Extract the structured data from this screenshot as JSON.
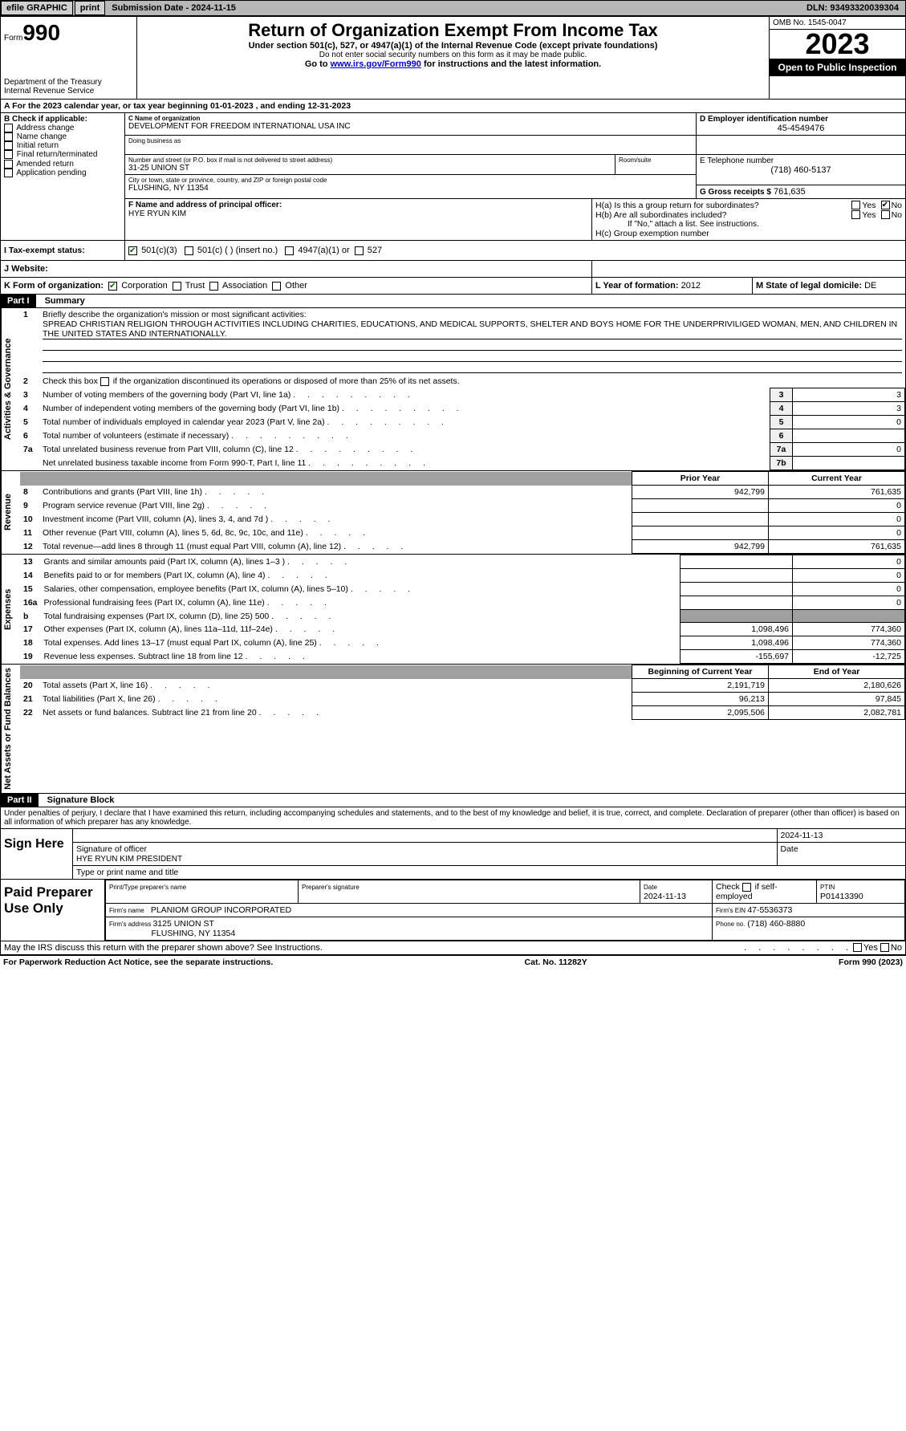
{
  "colors": {
    "accent_green": "#006600",
    "link_blue": "#0000cc",
    "gray_bg": "#b8b8b8",
    "gray_btn": "#d0d0d0",
    "gray_fill": "#a0a0a0",
    "num_bg": "#f0f0f0"
  },
  "topbar": {
    "efile": "efile GRAPHIC",
    "print": "print",
    "sub_label": "Submission Date - 2024-11-15",
    "dln": "DLN: 93493320039304"
  },
  "header": {
    "form_word": "Form",
    "form_num": "990",
    "dept": "Department of the Treasury",
    "irs": "Internal Revenue Service",
    "title": "Return of Organization Exempt From Income Tax",
    "sub1": "Under section 501(c), 527, or 4947(a)(1) of the Internal Revenue Code (except private foundations)",
    "sub2": "Do not enter social security numbers on this form as it may be made public.",
    "sub3_pre": "Go to ",
    "sub3_link": "www.irs.gov/Form990",
    "sub3_post": " for instructions and the latest information.",
    "omb": "OMB No. 1545-0047",
    "year": "2023",
    "inspect": "Open to Public Inspection"
  },
  "periodA": "A For the 2023 calendar year, or tax year beginning 01-01-2023   , and ending 12-31-2023",
  "boxB": {
    "label": "B Check if applicable:",
    "items": [
      "Address change",
      "Name change",
      "Initial return",
      "Final return/terminated",
      "Amended return",
      "Application pending"
    ]
  },
  "boxC": {
    "name_lbl": "C Name of organization",
    "name": "DEVELOPMENT FOR FREEDOM INTERNATIONAL USA INC",
    "dba_lbl": "Doing business as",
    "street_lbl": "Number and street (or P.O. box if mail is not delivered to street address)",
    "room_lbl": "Room/suite",
    "street": "31-25 UNION ST",
    "city_lbl": "City or town, state or province, country, and ZIP or foreign postal code",
    "city": "FLUSHING, NY  11354"
  },
  "boxD": {
    "lbl": "D Employer identification number",
    "val": "45-4549476"
  },
  "boxE": {
    "lbl": "E Telephone number",
    "val": "(718) 460-5137"
  },
  "boxG": {
    "lbl": "G Gross receipts $",
    "val": "761,635"
  },
  "boxF": {
    "lbl": "F  Name and address of principal officer:",
    "val": "HYE RYUN KIM"
  },
  "boxH": {
    "ha": "H(a)  Is this a group return for subordinates?",
    "hb": "H(b)  Are all subordinates included?",
    "hb_note": "If \"No,\" attach a list. See instructions.",
    "hc": "H(c)  Group exemption number",
    "yes": "Yes",
    "no": "No"
  },
  "boxI": {
    "lbl": "I    Tax-exempt status:",
    "o1": "501(c)(3)",
    "o2": "501(c) (  ) (insert no.)",
    "o3": "4947(a)(1) or",
    "o4": "527"
  },
  "boxJ": "J    Website:",
  "boxK": {
    "lbl": "K Form of organization:",
    "o1": "Corporation",
    "o2": "Trust",
    "o3": "Association",
    "o4": "Other"
  },
  "boxL": {
    "lbl": "L Year of formation:",
    "val": "2012"
  },
  "boxM": {
    "lbl": "M State of legal domicile:",
    "val": "DE"
  },
  "part1": {
    "tag": "Part I",
    "title": "Summary"
  },
  "summary": {
    "side_ag": "Activities & Governance",
    "side_rev": "Revenue",
    "side_exp": "Expenses",
    "side_na": "Net Assets or Fund Balances",
    "l1_lbl": "Briefly describe the organization's mission or most significant activities:",
    "l1_val": "SPREAD CHRISTIAN RELIGION THROUGH ACTIVITIES INCLUDING CHARITIES, EDUCATIONS, AND MEDICAL SUPPORTS, SHELTER AND BOYS HOME FOR THE UNDERPRIVILIGED WOMAN, MEN, AND CHILDREN IN THE UNITED STATES AND INTERNATIONALLY.",
    "l2": "Check this box        if the organization discontinued its operations or disposed of more than 25% of its net assets.",
    "rows_ag": [
      {
        "n": "3",
        "t": "Number of voting members of the governing body (Part VI, line 1a)",
        "box": "3",
        "v": "3"
      },
      {
        "n": "4",
        "t": "Number of independent voting members of the governing body (Part VI, line 1b)",
        "box": "4",
        "v": "3"
      },
      {
        "n": "5",
        "t": "Total number of individuals employed in calendar year 2023 (Part V, line 2a)",
        "box": "5",
        "v": "0"
      },
      {
        "n": "6",
        "t": "Total number of volunteers (estimate if necessary)",
        "box": "6",
        "v": ""
      },
      {
        "n": "7a",
        "t": "Total unrelated business revenue from Part VIII, column (C), line 12",
        "box": "7a",
        "v": "0"
      },
      {
        "n": "",
        "t": "Net unrelated business taxable income from Form 990-T, Part I, line 11",
        "box": "7b",
        "v": ""
      }
    ],
    "hdr_prior": "Prior Year",
    "hdr_curr": "Current Year",
    "hdr_beg": "Beginning of Current Year",
    "hdr_end": "End of Year",
    "rows_rev": [
      {
        "n": "8",
        "t": "Contributions and grants (Part VIII, line 1h)",
        "p": "942,799",
        "c": "761,635"
      },
      {
        "n": "9",
        "t": "Program service revenue (Part VIII, line 2g)",
        "p": "",
        "c": "0"
      },
      {
        "n": "10",
        "t": "Investment income (Part VIII, column (A), lines 3, 4, and 7d )",
        "p": "",
        "c": "0"
      },
      {
        "n": "11",
        "t": "Other revenue (Part VIII, column (A), lines 5, 6d, 8c, 9c, 10c, and 11e)",
        "p": "",
        "c": "0"
      },
      {
        "n": "12",
        "t": "Total revenue—add lines 8 through 11 (must equal Part VIII, column (A), line 12)",
        "p": "942,799",
        "c": "761,635"
      }
    ],
    "rows_exp": [
      {
        "n": "13",
        "t": "Grants and similar amounts paid (Part IX, column (A), lines 1–3 )",
        "p": "",
        "c": "0"
      },
      {
        "n": "14",
        "t": "Benefits paid to or for members (Part IX, column (A), line 4)",
        "p": "",
        "c": "0"
      },
      {
        "n": "15",
        "t": "Salaries, other compensation, employee benefits (Part IX, column (A), lines 5–10)",
        "p": "",
        "c": "0"
      },
      {
        "n": "16a",
        "t": "Professional fundraising fees (Part IX, column (A), line 11e)",
        "p": "",
        "c": "0"
      },
      {
        "n": "b",
        "t": "Total fundraising expenses (Part IX, column (D), line 25) 500",
        "p": "GRAY",
        "c": "GRAY"
      },
      {
        "n": "17",
        "t": "Other expenses (Part IX, column (A), lines 11a–11d, 11f–24e)",
        "p": "1,098,496",
        "c": "774,360"
      },
      {
        "n": "18",
        "t": "Total expenses. Add lines 13–17 (must equal Part IX, column (A), line 25)",
        "p": "1,098,496",
        "c": "774,360"
      },
      {
        "n": "19",
        "t": "Revenue less expenses. Subtract line 18 from line 12",
        "p": "-155,697",
        "c": "-12,725"
      }
    ],
    "rows_na": [
      {
        "n": "20",
        "t": "Total assets (Part X, line 16)",
        "p": "2,191,719",
        "c": "2,180,626"
      },
      {
        "n": "21",
        "t": "Total liabilities (Part X, line 26)",
        "p": "96,213",
        "c": "97,845"
      },
      {
        "n": "22",
        "t": "Net assets or fund balances. Subtract line 21 from line 20",
        "p": "2,095,506",
        "c": "2,082,781"
      }
    ]
  },
  "part2": {
    "tag": "Part II",
    "title": "Signature Block"
  },
  "sig": {
    "perjury": "Under penalties of perjury, I declare that I have examined this return, including accompanying schedules and statements, and to the best of my knowledge and belief, it is true, correct, and complete. Declaration of preparer (other than officer) is based on all information of which preparer has any knowledge.",
    "sign_here": "Sign Here",
    "sig_officer_lbl": "Signature of officer",
    "sig_date": "2024-11-13",
    "officer_name": "HYE RYUN KIM  PRESIDENT",
    "type_lbl": "Type or print name and title",
    "paid": "Paid Preparer Use Only",
    "prep_name_lbl": "Print/Type preparer's name",
    "prep_sig_lbl": "Preparer's signature",
    "date_lbl": "Date",
    "prep_date": "2024-11-13",
    "check_lbl": "Check        if self-employed",
    "ptin_lbl": "PTIN",
    "ptin": "P01413390",
    "firm_name_lbl": "Firm's name  ",
    "firm_name": "PLANIOM GROUP INCORPORATED",
    "firm_ein_lbl": "Firm's EIN  ",
    "firm_ein": "47-5536373",
    "firm_addr_lbl": "Firm's address ",
    "firm_addr1": "3125 UNION ST",
    "firm_addr2": "FLUSHING, NY  11354",
    "phone_lbl": "Phone no.",
    "phone": "(718) 460-8880",
    "discuss": "May the IRS discuss this return with the preparer shown above? See Instructions."
  },
  "footer": {
    "left": "For Paperwork Reduction Act Notice, see the separate instructions.",
    "mid": "Cat. No. 11282Y",
    "right": "Form 990 (2023)"
  }
}
